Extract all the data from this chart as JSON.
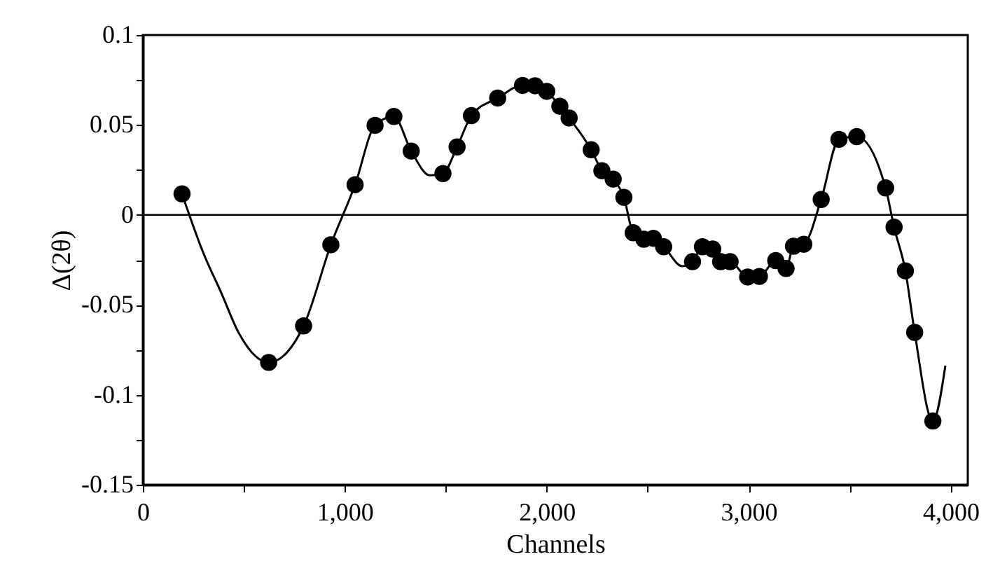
{
  "chart_data": {
    "type": "scatter",
    "xlabel": "Channels",
    "ylabel": "Δ(2θ)",
    "xlim": [
      0,
      4085
    ],
    "ylim": [
      -0.15,
      0.1
    ],
    "xticks": [
      0,
      {
        "value": 500,
        "label": null
      },
      {
        "value": 1000,
        "label": "1,000"
      },
      {
        "value": 1500,
        "label": null
      },
      {
        "value": 2000,
        "label": "2,000"
      },
      {
        "value": 2500,
        "label": null
      },
      {
        "value": 3000,
        "label": "3,000"
      },
      {
        "value": 3500,
        "label": null
      },
      {
        "value": 4000,
        "label": "4,000"
      }
    ],
    "yticks": [
      -0.15,
      {
        "value": -0.125,
        "label": null
      },
      -0.1,
      {
        "value": -0.075,
        "label": null
      },
      -0.05,
      {
        "value": -0.025,
        "label": null
      },
      0,
      {
        "value": 0.025,
        "label": null
      },
      0.05,
      {
        "value": 0.075,
        "label": null
      },
      0.1
    ],
    "grid": false,
    "ref_lines": [
      {
        "axis": "y",
        "value": 0,
        "color": "#000000"
      }
    ],
    "series": [
      {
        "type": "line",
        "color": "#000000",
        "marker": "none",
        "line_style": "solid",
        "x": [
          194,
          299,
          391,
          472,
          623,
          796,
          931,
          1051,
          1150,
          1243,
          1329,
          1421,
          1486,
          1556,
          1627,
          1757,
          1880,
          1942,
          2000,
          2065,
          2111,
          2220,
          2273,
          2329,
          2382,
          2428,
          2481,
          2528,
          2579,
          2671,
          2722,
          2771,
          2822,
          2861,
          2908,
          2995,
          3053,
          3134,
          3185,
          3222,
          3273,
          3359,
          3447,
          3535,
          3678,
          3720,
          3776,
          3822,
          3912,
          3974
        ],
        "values": [
          0.0117,
          -0.021,
          -0.044,
          -0.065,
          -0.082,
          -0.0617,
          -0.0166,
          0.0168,
          0.0498,
          0.0547,
          0.0355,
          0.022,
          0.023,
          0.0378,
          0.0552,
          0.065,
          0.072,
          0.0718,
          0.0687,
          0.0604,
          0.0539,
          0.0362,
          0.0246,
          0.0199,
          0.0098,
          -0.0099,
          -0.0135,
          -0.013,
          -0.0177,
          -0.0285,
          -0.026,
          -0.0177,
          -0.019,
          -0.026,
          -0.026,
          -0.0345,
          -0.0342,
          -0.0254,
          -0.0298,
          -0.0174,
          -0.0163,
          0.0086,
          0.042,
          0.0435,
          0.015,
          -0.0068,
          -0.0311,
          -0.0653,
          -0.1146,
          -0.0838
        ]
      },
      {
        "type": "scatter",
        "color": "#000000",
        "marker": "circle",
        "x": [
          194,
          623,
          796,
          931,
          1051,
          1150,
          1243,
          1329,
          1486,
          1556,
          1627,
          1757,
          1880,
          1942,
          2000,
          2065,
          2111,
          2220,
          2273,
          2329,
          2382,
          2428,
          2481,
          2528,
          2579,
          2722,
          2771,
          2822,
          2861,
          2908,
          2995,
          3053,
          3134,
          3185,
          3222,
          3273,
          3359,
          3447,
          3535,
          3678,
          3720,
          3776,
          3822,
          3912
        ],
        "values": [
          0.0117,
          -0.082,
          -0.0617,
          -0.0166,
          0.0168,
          0.0498,
          0.0547,
          0.0355,
          0.023,
          0.0378,
          0.0552,
          0.065,
          0.072,
          0.0718,
          0.0687,
          0.0604,
          0.0539,
          0.0362,
          0.0246,
          0.0199,
          0.0098,
          -0.0099,
          -0.0135,
          -0.013,
          -0.0177,
          -0.026,
          -0.0177,
          -0.019,
          -0.026,
          -0.026,
          -0.0345,
          -0.0342,
          -0.0254,
          -0.0298,
          -0.0174,
          -0.0163,
          0.0086,
          0.042,
          0.0435,
          0.015,
          -0.0068,
          -0.0311,
          -0.0653,
          -0.1146
        ]
      }
    ]
  }
}
